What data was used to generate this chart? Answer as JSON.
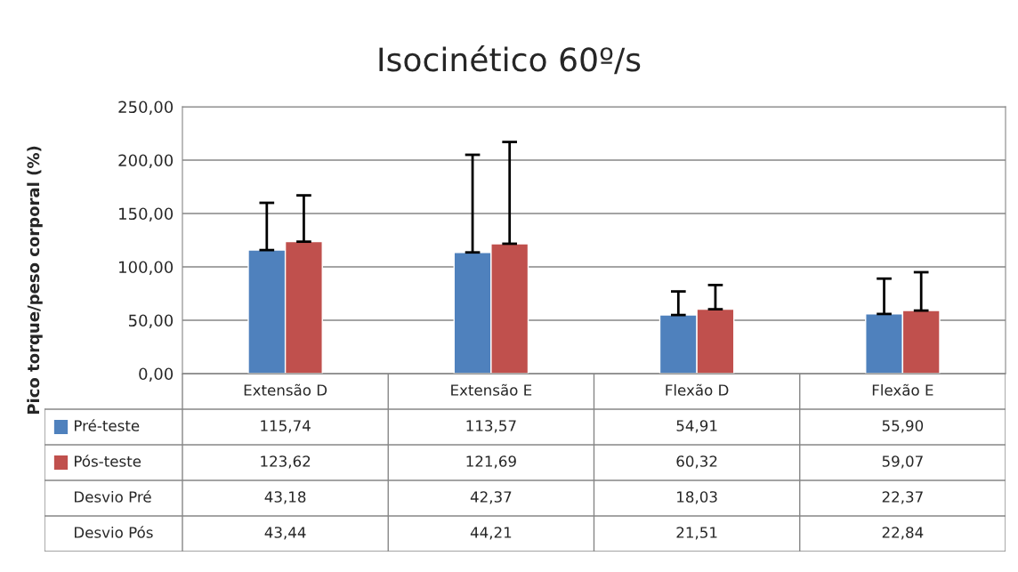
{
  "chart_data": {
    "type": "bar",
    "title": "Isocinético 60º/s",
    "ylabel": "Pico torque/peso corporal (%)",
    "categories": [
      "Extensão D",
      "Extensão E",
      "Flexão D",
      "Flexão E"
    ],
    "series": [
      {
        "name": "Pré-teste",
        "color": "#4f81bd",
        "values": [
          115.74,
          113.57,
          54.91,
          55.9
        ],
        "value_labels": [
          "115,74",
          "113,57",
          "54,91",
          "55,90"
        ],
        "errors": [
          [
            115.74,
            160
          ],
          [
            113.57,
            205
          ],
          [
            54.91,
            77
          ],
          [
            55.9,
            89
          ]
        ]
      },
      {
        "name": "Pós-teste",
        "color": "#c0504d",
        "values": [
          123.62,
          121.69,
          60.32,
          59.07
        ],
        "value_labels": [
          "123,62",
          "121,69",
          "60,32",
          "59,07"
        ],
        "errors": [
          [
            123.62,
            167
          ],
          [
            121.69,
            217
          ],
          [
            60.32,
            83
          ],
          [
            59.07,
            95
          ]
        ]
      }
    ],
    "annotations": [
      "Desvio Pré",
      "43,18",
      "42,37",
      "18,03",
      "22,37",
      "Desvio Pós",
      "43,44",
      "44,21",
      "21,51",
      "22,84"
    ],
    "ylim": [
      0,
      250
    ],
    "yticks": [
      {
        "value": 0,
        "label": "0,00"
      },
      {
        "value": 50,
        "label": "50,00"
      },
      {
        "value": 100,
        "label": "100,00"
      },
      {
        "value": 150,
        "label": "150,00"
      },
      {
        "value": 200,
        "label": "200,00"
      },
      {
        "value": 250,
        "label": "250,00"
      }
    ],
    "grid": "y",
    "legend": "bottom left"
  }
}
